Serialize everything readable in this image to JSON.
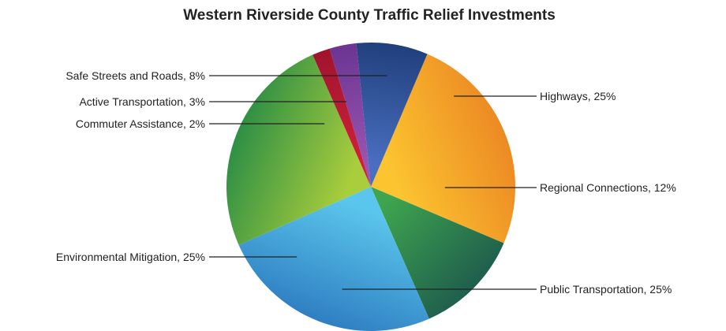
{
  "chart_data": {
    "type": "pie",
    "title": "Western Riverside County Traffic Relief Investments",
    "slices": [
      {
        "label": "Highways, 25%",
        "value": 25,
        "colors": [
          "#fcc530",
          "#ec8a24"
        ]
      },
      {
        "label": "Regional Connections, 12%",
        "value": 12,
        "colors": [
          "#3ea44e",
          "#1f5e4d"
        ]
      },
      {
        "label": "Public Transportation, 25%",
        "value": 25,
        "colors": [
          "#5bc6ec",
          "#2f7fc2"
        ]
      },
      {
        "label": "Environmental Mitigation, 25%",
        "value": 25,
        "colors": [
          "#a9cd3c",
          "#2e8f45"
        ]
      },
      {
        "label": "Commuter Assistance, 2%",
        "value": 2,
        "colors": [
          "#d2203a",
          "#a0142e"
        ]
      },
      {
        "label": "Active Transportation, 3%",
        "value": 3,
        "colors": [
          "#9a55b0",
          "#6b3592"
        ]
      },
      {
        "label": "Safe Streets and Roads, 8%",
        "value": 8,
        "colors": [
          "#4a6fc0",
          "#203f7c"
        ]
      }
    ]
  }
}
